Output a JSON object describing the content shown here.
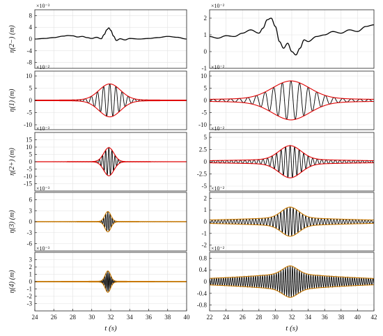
{
  "figure": {
    "xlabel": "t (s)",
    "columns": [
      {
        "xlim": [
          24,
          40
        ],
        "xticks": [
          24,
          26,
          28,
          30,
          32,
          34,
          36,
          38,
          40
        ]
      },
      {
        "xlim": [
          22,
          42
        ],
        "xticks": [
          22,
          24,
          26,
          28,
          30,
          32,
          34,
          36,
          38,
          40,
          42
        ]
      }
    ]
  },
  "chart_data": [
    {
      "type": "line",
      "row": 0,
      "col": 0,
      "ylabel": "η(2−) (m)",
      "multiplier": "×10⁻³",
      "ylim": [
        -10,
        10
      ],
      "yticks": [
        -8,
        -4,
        0,
        4,
        8
      ],
      "series": [
        {
          "color": "#000000",
          "kind": "setdown",
          "x": [
            24,
            25,
            26,
            27,
            27.5,
            28,
            28.5,
            29,
            29.5,
            30,
            30.5,
            31,
            31.3,
            31.6,
            31.8,
            32,
            32.3,
            32.6,
            33,
            33.5,
            34,
            35,
            36,
            37,
            38,
            39,
            40
          ],
          "y": [
            0,
            0.2,
            0.5,
            1,
            1.2,
            1.1,
            0.7,
            0.9,
            0.5,
            0.2,
            0.6,
            0.1,
            1.5,
            3.2,
            3.8,
            3.0,
            1.0,
            -0.5,
            0.1,
            -0.3,
            0.2,
            0,
            0.2,
            0.5,
            0.9,
            0.6,
            0
          ]
        }
      ]
    },
    {
      "type": "line",
      "row": 1,
      "col": 0,
      "ylabel": "η(1) (m)",
      "multiplier": "×10⁻²",
      "ylim": [
        -12,
        12
      ],
      "yticks": [
        -10,
        -5,
        0,
        5,
        10
      ],
      "center": 31.9,
      "amp": 6.5,
      "width": 1.6,
      "period": 0.65,
      "decay": 0.25,
      "series": [
        {
          "color": "#000000",
          "kind": "signal"
        },
        {
          "color": "#e00000",
          "kind": "envelope"
        }
      ]
    },
    {
      "type": "line",
      "row": 2,
      "col": 0,
      "ylabel": "η(2+) (m)",
      "multiplier": "×10⁻³",
      "ylim": [
        -20,
        20
      ],
      "yticks": [
        -15,
        -10,
        -5,
        0,
        5,
        10,
        15
      ],
      "center": 31.8,
      "amp": 9.5,
      "width": 0.75,
      "period": 0.33,
      "decay": 0.1,
      "series": [
        {
          "color": "#000000",
          "kind": "signal"
        },
        {
          "color": "#e00000",
          "kind": "envelope"
        }
      ]
    },
    {
      "type": "line",
      "row": 3,
      "col": 0,
      "ylabel": "η(3) (m)",
      "multiplier": "×10⁻³",
      "ylim": [
        -8,
        8
      ],
      "yticks": [
        -6,
        -3,
        0,
        3,
        6
      ],
      "center": 31.7,
      "amp": 2.7,
      "width": 0.45,
      "period": 0.22,
      "decay": 0.07,
      "series": [
        {
          "color": "#000000",
          "kind": "signal"
        },
        {
          "color": "#c87800",
          "kind": "envelope"
        }
      ]
    },
    {
      "type": "line",
      "row": 4,
      "col": 0,
      "ylabel": "η(4) (m)",
      "multiplier": "×10⁻³",
      "ylim": [
        -4,
        4
      ],
      "yticks": [
        -3,
        -2,
        -1,
        0,
        1,
        2,
        3
      ],
      "center": 31.7,
      "amp": 1.4,
      "width": 0.4,
      "period": 0.16,
      "decay": 0.06,
      "series": [
        {
          "color": "#000000",
          "kind": "signal"
        },
        {
          "color": "#c87800",
          "kind": "envelope"
        }
      ]
    },
    {
      "type": "line",
      "row": 0,
      "col": 1,
      "ylabel": "",
      "multiplier": "×10⁻²",
      "ylim": [
        -1,
        2.5
      ],
      "yticks": [
        -1,
        0,
        1,
        2
      ],
      "series": [
        {
          "color": "#000000",
          "kind": "setdown",
          "x": [
            22,
            23,
            24,
            25,
            26,
            27,
            28,
            28.5,
            29,
            29.5,
            30,
            30.5,
            31,
            31.5,
            32,
            32.5,
            33,
            33.5,
            34,
            35,
            36,
            37,
            38,
            39,
            40,
            41,
            42
          ],
          "y": [
            0.9,
            0.8,
            0.95,
            0.9,
            1.1,
            1.3,
            1.1,
            1.4,
            1.9,
            2.0,
            1.5,
            0.6,
            0.2,
            0.5,
            0.0,
            -0.2,
            0.2,
            0.7,
            0.6,
            0.9,
            1.0,
            1.2,
            1.1,
            1.3,
            1.2,
            1.5,
            1.6
          ]
        }
      ]
    },
    {
      "type": "line",
      "row": 1,
      "col": 1,
      "ylabel": "",
      "multiplier": "×10⁻²",
      "ylim": [
        -12,
        12
      ],
      "yticks": [
        -10,
        -5,
        0,
        5,
        10
      ],
      "center": 31.9,
      "amp": 6.8,
      "width": 3.2,
      "period": 1.05,
      "decay": 1.2,
      "series": [
        {
          "color": "#000000",
          "kind": "signal"
        },
        {
          "color": "#e00000",
          "kind": "envelope"
        }
      ]
    },
    {
      "type": "line",
      "row": 2,
      "col": 1,
      "ylabel": "",
      "multiplier": "×10⁻²",
      "ylim": [
        -6,
        6
      ],
      "yticks": [
        -5,
        -2.5,
        0,
        2.5,
        5
      ],
      "center": 31.8,
      "amp": 2.7,
      "width": 1.9,
      "period": 0.55,
      "decay": 0.6,
      "series": [
        {
          "color": "#000000",
          "kind": "signal"
        },
        {
          "color": "#e00000",
          "kind": "envelope"
        }
      ]
    },
    {
      "type": "line",
      "row": 3,
      "col": 1,
      "ylabel": "",
      "multiplier": "×10⁻²",
      "ylim": [
        -2.5,
        2.5
      ],
      "yticks": [
        -2,
        -1,
        0,
        1,
        2
      ],
      "center": 31.8,
      "amp": 0.85,
      "width": 1.5,
      "period": 0.38,
      "decay": 0.4,
      "series": [
        {
          "color": "#000000",
          "kind": "signal"
        },
        {
          "color": "#c87800",
          "kind": "envelope"
        }
      ]
    },
    {
      "type": "line",
      "row": 4,
      "col": 1,
      "ylabel": "",
      "multiplier": "×10⁻²",
      "ylim": [
        -1,
        1
      ],
      "yticks": [
        -0.8,
        -0.4,
        0,
        0.4,
        0.8
      ],
      "center": 31.8,
      "amp": 0.24,
      "width": 1.3,
      "period": 0.28,
      "decay": 0.3,
      "series": [
        {
          "color": "#000000",
          "kind": "signal"
        },
        {
          "color": "#c87800",
          "kind": "envelope"
        }
      ]
    }
  ]
}
